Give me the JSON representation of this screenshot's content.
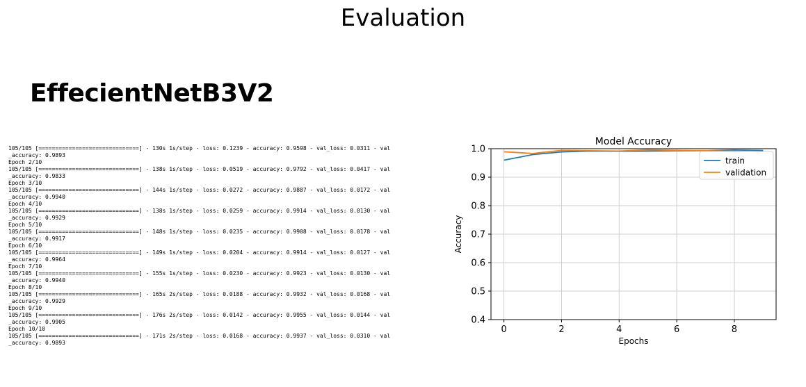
{
  "slide": {
    "title": "Evaluation",
    "model_name": "EffecientNetB3V2"
  },
  "training_log": [
    "105/105 [==============================] - 130s 1s/step - loss: 0.1239 - accuracy: 0.9598 - val_loss: 0.0311 - val",
    "_accuracy: 0.9893",
    "Epoch 2/10",
    "105/105 [==============================] - 138s 1s/step - loss: 0.0519 - accuracy: 0.9792 - val_loss: 0.0417 - val",
    "_accuracy: 0.9833",
    "Epoch 3/10",
    "105/105 [==============================] - 144s 1s/step - loss: 0.0272 - accuracy: 0.9887 - val_loss: 0.0172 - val",
    "_accuracy: 0.9940",
    "Epoch 4/10",
    "105/105 [==============================] - 138s 1s/step - loss: 0.0259 - accuracy: 0.9914 - val_loss: 0.0130 - val",
    "_accuracy: 0.9929",
    "Epoch 5/10",
    "105/105 [==============================] - 148s 1s/step - loss: 0.0235 - accuracy: 0.9908 - val_loss: 0.0178 - val",
    "_accuracy: 0.9917",
    "Epoch 6/10",
    "105/105 [==============================] - 149s 1s/step - loss: 0.0204 - accuracy: 0.9914 - val_loss: 0.0127 - val",
    "_accuracy: 0.9964",
    "Epoch 7/10",
    "105/105 [==============================] - 155s 1s/step - loss: 0.0230 - accuracy: 0.9923 - val_loss: 0.0130 - val",
    "_accuracy: 0.9940",
    "Epoch 8/10",
    "105/105 [==============================] - 165s 2s/step - loss: 0.0188 - accuracy: 0.9932 - val_loss: 0.0168 - val",
    "_accuracy: 0.9929",
    "Epoch 9/10",
    "105/105 [==============================] - 176s 2s/step - loss: 0.0142 - accuracy: 0.9955 - val_loss: 0.0144 - val",
    "_accuracy: 0.9905",
    "Epoch 10/10",
    "105/105 [==============================] - 171s 2s/step - loss: 0.0168 - accuracy: 0.9937 - val_loss: 0.0310 - val",
    "_accuracy: 0.9893"
  ],
  "chart_data": {
    "type": "line",
    "title": "Model Accuracy",
    "xlabel": "Epochs",
    "ylabel": "Accuracy",
    "xlim": [
      -0.45,
      9.45
    ],
    "ylim": [
      0.4,
      1.0
    ],
    "xticks": [
      0,
      2,
      4,
      6,
      8
    ],
    "yticks": [
      0.4,
      0.5,
      0.6,
      0.7,
      0.8,
      0.9,
      1.0
    ],
    "grid": true,
    "legend_position": "top-right",
    "x": [
      0,
      1,
      2,
      3,
      4,
      5,
      6,
      7,
      8,
      9
    ],
    "series": [
      {
        "name": "train",
        "color": "#1f77b4",
        "values": [
          0.9598,
          0.9792,
          0.9887,
          0.9914,
          0.9908,
          0.9914,
          0.9923,
          0.9932,
          0.9955,
          0.9937
        ]
      },
      {
        "name": "validation",
        "color": "#ff7f0e",
        "values": [
          0.9893,
          0.9833,
          0.994,
          0.9929,
          0.9917,
          0.9964,
          0.994,
          0.9929,
          0.9905,
          0.9893
        ]
      }
    ]
  }
}
